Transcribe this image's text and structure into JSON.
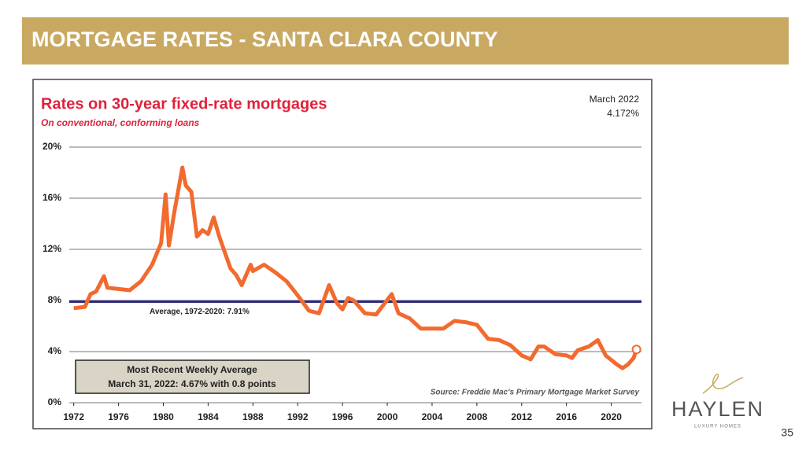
{
  "header": {
    "title": "MORTGAGE RATES - SANTA CLARA COUNTY"
  },
  "chart_data": {
    "type": "line",
    "title": "Rates on 30-year fixed-rate mortgages",
    "subtitle": "On conventional, conforming loans",
    "annotations": [
      "March 2022",
      "4.172%"
    ],
    "note": [
      "Most Recent Weekly Average",
      "March 31, 2022: 4.67% with 0.8 points"
    ],
    "source": "Source: Freddie Mac's Primary Mortgage Market Survey",
    "reference_line": {
      "value": 7.91,
      "label": "Average, 1972-2020: 7.91%",
      "color": "#2e2a7a"
    },
    "series": [
      {
        "color": "#f26a2e",
        "x": [
          1972,
          1973,
          1973.5,
          1974,
          1974.7,
          1975,
          1976,
          1977,
          1978,
          1979,
          1979.8,
          1980.2,
          1980.5,
          1981,
          1981.7,
          1982,
          1982.5,
          1983,
          1983.5,
          1984,
          1984.5,
          1985,
          1986,
          1986.5,
          1987,
          1987.8,
          1988,
          1989,
          1990,
          1991,
          1992,
          1993,
          1993.9,
          1994.8,
          1995.5,
          1996,
          1996.5,
          1997,
          1998,
          1999,
          2000.4,
          2001,
          2002,
          2003,
          2004,
          2005,
          2006,
          2007,
          2008,
          2009,
          2010,
          2011,
          2012,
          2012.8,
          2013.5,
          2014,
          2015,
          2016,
          2016.5,
          2017,
          2018,
          2018.8,
          2019.5,
          2020.5,
          2021,
          2021.5,
          2022,
          2022.25
        ],
        "values": [
          7.4,
          7.5,
          8.5,
          8.7,
          9.9,
          9.0,
          8.9,
          8.8,
          9.5,
          10.8,
          12.5,
          16.3,
          12.3,
          15,
          18.4,
          17,
          16.5,
          13,
          13.5,
          13.2,
          14.5,
          13,
          10.5,
          10,
          9.2,
          10.8,
          10.3,
          10.8,
          10.2,
          9.5,
          8.4,
          7.2,
          7.0,
          9.2,
          7.8,
          7.3,
          8.2,
          8,
          7,
          6.9,
          8.5,
          7,
          6.6,
          5.8,
          5.8,
          5.8,
          6.4,
          6.3,
          6.1,
          5.0,
          4.9,
          4.5,
          3.7,
          3.4,
          4.4,
          4.4,
          3.8,
          3.7,
          3.5,
          4.1,
          4.4,
          4.9,
          3.7,
          3.0,
          2.7,
          3.0,
          3.5,
          4.17
        ]
      }
    ],
    "xlim": [
      1971.6,
      2022.7
    ],
    "xticks": [
      1972,
      1976,
      1980,
      1984,
      1988,
      1992,
      1996,
      2000,
      2004,
      2008,
      2012,
      2016,
      2020
    ],
    "ylim": [
      0,
      20
    ],
    "yticks": [
      {
        "value": 0,
        "label": "0%"
      },
      {
        "value": 4,
        "label": "4%"
      },
      {
        "value": 8,
        "label": "8%"
      },
      {
        "value": 12,
        "label": "12%"
      },
      {
        "value": 16,
        "label": "16%"
      },
      {
        "value": 20,
        "label": "20%"
      }
    ],
    "grid": true
  },
  "logo": {
    "name": "HAYLEN",
    "tagline": "LUXURY HOMES"
  },
  "page_number": 35
}
